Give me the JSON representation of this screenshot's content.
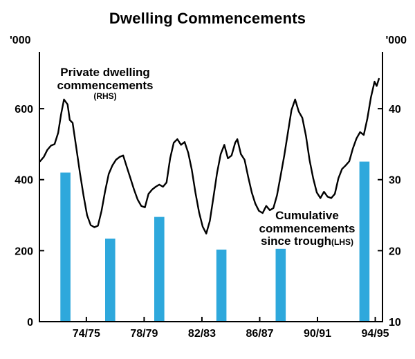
{
  "chart_data": {
    "type": "combo",
    "title": "Dwelling Commencements",
    "left_axis": {
      "unit": "'000",
      "ticks": [
        0,
        200,
        400,
        600
      ],
      "range": [
        0,
        760
      ]
    },
    "right_axis": {
      "unit": "'000",
      "ticks": [
        10,
        20,
        30,
        40
      ],
      "range": [
        10,
        48
      ]
    },
    "x_axis": {
      "labels": [
        "74/75",
        "78/79",
        "82/83",
        "86/87",
        "90/91",
        "94/95"
      ],
      "label_years": [
        1974.75,
        1978.75,
        1982.75,
        1986.75,
        1990.75,
        1994.75
      ],
      "range": [
        1971.5,
        1995.25
      ]
    },
    "line_series": {
      "name": "Private dwelling commencements",
      "axis": "RHS",
      "color": "#000000",
      "points": [
        [
          1971.55,
          32.6
        ],
        [
          1971.8,
          33.2
        ],
        [
          1972.05,
          34.2
        ],
        [
          1972.3,
          34.8
        ],
        [
          1972.55,
          35.0
        ],
        [
          1972.8,
          36.6
        ],
        [
          1973.0,
          39.2
        ],
        [
          1973.2,
          41.3
        ],
        [
          1973.45,
          40.6
        ],
        [
          1973.6,
          38.4
        ],
        [
          1973.8,
          38.0
        ],
        [
          1974.05,
          34.5
        ],
        [
          1974.3,
          31.0
        ],
        [
          1974.55,
          27.8
        ],
        [
          1974.8,
          25.0
        ],
        [
          1975.05,
          23.6
        ],
        [
          1975.3,
          23.3
        ],
        [
          1975.55,
          23.5
        ],
        [
          1975.8,
          25.6
        ],
        [
          1976.05,
          28.4
        ],
        [
          1976.3,
          30.8
        ],
        [
          1976.55,
          32.0
        ],
        [
          1976.8,
          32.8
        ],
        [
          1977.05,
          33.2
        ],
        [
          1977.3,
          33.4
        ],
        [
          1977.55,
          31.8
        ],
        [
          1977.8,
          30.2
        ],
        [
          1978.05,
          28.6
        ],
        [
          1978.3,
          27.2
        ],
        [
          1978.55,
          26.3
        ],
        [
          1978.8,
          26.1
        ],
        [
          1979.05,
          28.0
        ],
        [
          1979.3,
          28.6
        ],
        [
          1979.55,
          29.0
        ],
        [
          1979.8,
          29.3
        ],
        [
          1980.05,
          29.0
        ],
        [
          1980.3,
          29.6
        ],
        [
          1980.55,
          33.0
        ],
        [
          1980.8,
          35.2
        ],
        [
          1981.05,
          35.7
        ],
        [
          1981.3,
          34.9
        ],
        [
          1981.55,
          35.3
        ],
        [
          1981.8,
          33.8
        ],
        [
          1982.05,
          31.4
        ],
        [
          1982.3,
          28.2
        ],
        [
          1982.55,
          25.4
        ],
        [
          1982.8,
          23.4
        ],
        [
          1983.05,
          22.4
        ],
        [
          1983.3,
          24.2
        ],
        [
          1983.55,
          27.6
        ],
        [
          1983.8,
          31.0
        ],
        [
          1984.05,
          33.6
        ],
        [
          1984.3,
          34.9
        ],
        [
          1984.55,
          33.0
        ],
        [
          1984.8,
          33.4
        ],
        [
          1985.05,
          35.2
        ],
        [
          1985.2,
          35.7
        ],
        [
          1985.45,
          33.6
        ],
        [
          1985.7,
          32.8
        ],
        [
          1985.95,
          30.4
        ],
        [
          1986.2,
          28.2
        ],
        [
          1986.45,
          26.6
        ],
        [
          1986.7,
          25.6
        ],
        [
          1986.95,
          25.3
        ],
        [
          1987.2,
          26.3
        ],
        [
          1987.45,
          25.7
        ],
        [
          1987.7,
          26.0
        ],
        [
          1987.95,
          27.8
        ],
        [
          1988.2,
          30.6
        ],
        [
          1988.45,
          33.4
        ],
        [
          1988.7,
          36.6
        ],
        [
          1988.95,
          39.8
        ],
        [
          1989.2,
          41.3
        ],
        [
          1989.45,
          39.6
        ],
        [
          1989.7,
          38.7
        ],
        [
          1989.95,
          36.2
        ],
        [
          1990.2,
          32.8
        ],
        [
          1990.45,
          30.2
        ],
        [
          1990.7,
          28.2
        ],
        [
          1990.95,
          27.4
        ],
        [
          1991.2,
          28.3
        ],
        [
          1991.45,
          27.6
        ],
        [
          1991.7,
          27.4
        ],
        [
          1991.95,
          28.0
        ],
        [
          1992.2,
          30.2
        ],
        [
          1992.45,
          31.5
        ],
        [
          1992.7,
          32.0
        ],
        [
          1992.95,
          32.6
        ],
        [
          1993.2,
          34.4
        ],
        [
          1993.45,
          35.8
        ],
        [
          1993.7,
          36.7
        ],
        [
          1993.95,
          36.3
        ],
        [
          1994.2,
          38.6
        ],
        [
          1994.45,
          41.6
        ],
        [
          1994.7,
          43.8
        ],
        [
          1994.85,
          43.2
        ],
        [
          1995.0,
          44.2
        ]
      ]
    },
    "bar_series": {
      "name": "Cumulative commencements since trough",
      "axis": "LHS",
      "color": "#2ea8dc",
      "bar_width_years": 0.7,
      "points": [
        [
          1973.3,
          420
        ],
        [
          1976.4,
          234
        ],
        [
          1979.8,
          295
        ],
        [
          1984.1,
          203
        ],
        [
          1988.2,
          205
        ],
        [
          1994.0,
          451
        ]
      ]
    },
    "annotations": {
      "private": {
        "line1": "Private dwelling",
        "line2": "commencements",
        "line3": "(RHS)"
      },
      "cumulative": {
        "line1": "Cumulative",
        "line2": "commencements",
        "line3": "since trough",
        "line3_suffix": "(LHS)"
      }
    }
  }
}
